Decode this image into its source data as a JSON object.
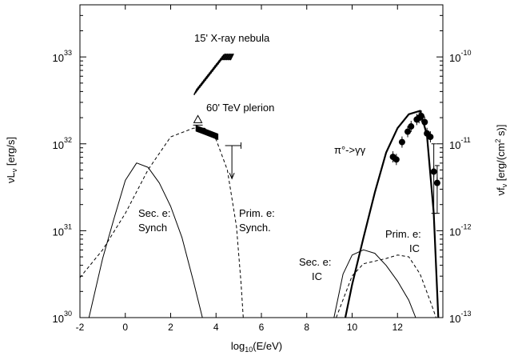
{
  "chart_data": {
    "type": "line",
    "xlabel": "log10(E/eV)",
    "ylabel_left": "νLν [erg/s]",
    "ylabel_right": "νfν [erg/(cm² s)]",
    "xlim": [
      -2,
      14
    ],
    "ylim_log10_left": [
      30,
      33.6
    ],
    "ylim_log10_right": [
      -13,
      -9.4
    ],
    "x_ticks": [
      -2,
      0,
      2,
      4,
      6,
      8,
      10,
      12
    ],
    "y_ticks_left": [
      "10^30",
      "10^31",
      "10^32",
      "10^33"
    ],
    "y_ticks_right": [
      "10^-13",
      "10^-12",
      "10^-11",
      "10^-10"
    ],
    "series": [
      {
        "name": "Sec. e: Synch",
        "style": "solid",
        "points": [
          [
            -1.6,
            30.0
          ],
          [
            -1.0,
            30.68
          ],
          [
            -0.5,
            31.14
          ],
          [
            0.0,
            31.58
          ],
          [
            0.5,
            31.78
          ],
          [
            1.0,
            31.73
          ],
          [
            1.5,
            31.55
          ],
          [
            2.0,
            31.28
          ],
          [
            2.5,
            30.92
          ],
          [
            3.0,
            30.42
          ],
          [
            3.4,
            30.0
          ]
        ]
      },
      {
        "name": "Prim. e: Synch.",
        "style": "dashed",
        "points": [
          [
            -2.0,
            30.46
          ],
          [
            -1.0,
            30.78
          ],
          [
            0.0,
            31.2
          ],
          [
            1.0,
            31.7
          ],
          [
            2.0,
            32.08
          ],
          [
            3.0,
            32.18
          ],
          [
            3.5,
            32.18
          ],
          [
            4.0,
            32.05
          ],
          [
            4.5,
            31.7
          ],
          [
            4.9,
            31.05
          ],
          [
            5.1,
            30.4
          ],
          [
            5.2,
            30.0
          ]
        ]
      },
      {
        "name": "Sec. e: IC",
        "style": "solid",
        "points": [
          [
            9.2,
            30.0
          ],
          [
            9.6,
            30.5
          ],
          [
            10.0,
            30.72
          ],
          [
            10.5,
            30.78
          ],
          [
            11.0,
            30.74
          ],
          [
            11.5,
            30.6
          ],
          [
            12.0,
            30.42
          ],
          [
            12.5,
            30.2
          ],
          [
            12.8,
            30.0
          ]
        ]
      },
      {
        "name": "Prim. e: IC",
        "style": "dashed",
        "points": [
          [
            9.3,
            30.0
          ],
          [
            10.0,
            30.48
          ],
          [
            10.5,
            30.62
          ],
          [
            11.5,
            30.68
          ],
          [
            12.0,
            30.72
          ],
          [
            12.5,
            30.7
          ],
          [
            13.0,
            30.5
          ],
          [
            13.5,
            30.15
          ],
          [
            13.7,
            30.0
          ]
        ]
      },
      {
        "name": "π°->γγ",
        "style": "thick",
        "points": [
          [
            9.7,
            30.0
          ],
          [
            10.0,
            30.38
          ],
          [
            10.5,
            30.92
          ],
          [
            11.0,
            31.44
          ],
          [
            11.5,
            31.9
          ],
          [
            12.0,
            32.18
          ],
          [
            12.5,
            32.34
          ],
          [
            13.0,
            32.38
          ],
          [
            13.3,
            32.1
          ],
          [
            13.6,
            31.2
          ],
          [
            13.8,
            30.0
          ]
        ]
      }
    ],
    "data_points": [
      {
        "x": 11.8,
        "y": 31.85
      },
      {
        "x": 11.95,
        "y": 31.82
      },
      {
        "x": 12.2,
        "y": 32.02
      },
      {
        "x": 12.45,
        "y": 32.14
      },
      {
        "x": 12.6,
        "y": 32.2
      },
      {
        "x": 12.85,
        "y": 32.28
      },
      {
        "x": 12.95,
        "y": 32.3
      },
      {
        "x": 13.05,
        "y": 32.32
      },
      {
        "x": 13.2,
        "y": 32.25
      },
      {
        "x": 13.3,
        "y": 32.12
      },
      {
        "x": 13.45,
        "y": 32.08
      },
      {
        "x": 13.6,
        "y": 31.68
      },
      {
        "x": 13.75,
        "y": 31.55
      }
    ],
    "upper_limit": {
      "x": [
        4.4,
        5.1
      ],
      "y": 31.98,
      "arrow_to": 31.6
    },
    "triangle_marker": {
      "x": 3.2,
      "y": 32.28
    },
    "xray_band": {
      "x": [
        3.1,
        4.7
      ],
      "y": [
        32.6,
        33.0
      ]
    },
    "tev_band": {
      "x": [
        3.1,
        4.1
      ],
      "y": [
        32.18,
        32.08
      ]
    },
    "annotations": {
      "xray_nebula": "15' X-ray nebula",
      "tev_plerion": "60' TeV plerion",
      "sec_synch_1": "Sec. e:",
      "sec_synch_2": "Synch",
      "prim_synch_1": "Prim. e:",
      "prim_synch_2": "Synch.",
      "sec_ic_1": "Sec. e:",
      "sec_ic_2": "IC",
      "prim_ic_1": "Prim. e:",
      "prim_ic_2": "IC",
      "pion": "π°->γγ"
    }
  }
}
